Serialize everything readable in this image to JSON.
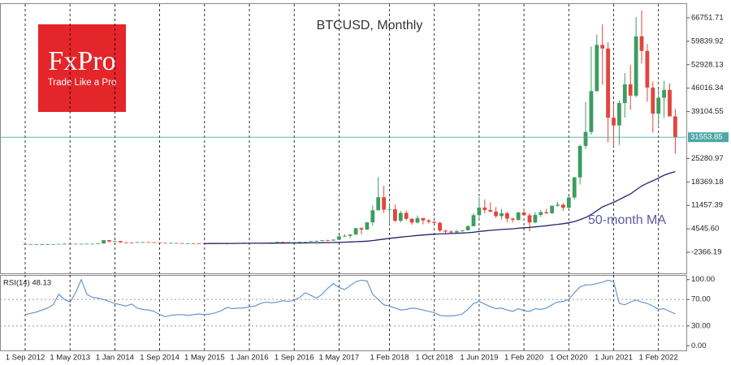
{
  "chart_data": [
    {
      "type": "candlestick",
      "title": "BTCUSD, Monthly",
      "logo": {
        "name": "FxPro",
        "slogan": "Trade Like a Pro"
      },
      "categories": [
        "1 Sep 2012",
        null,
        null,
        null,
        null,
        null,
        null,
        null,
        "1 May 2013",
        null,
        null,
        null,
        null,
        null,
        null,
        null,
        "1 Jan 2014",
        null,
        null,
        null,
        null,
        null,
        null,
        null,
        "1 Sep 2014",
        null,
        null,
        null,
        null,
        null,
        null,
        null,
        "1 May 2015",
        null,
        null,
        null,
        null,
        null,
        null,
        null,
        "1 Jan 2016",
        null,
        null,
        null,
        null,
        null,
        null,
        null,
        "1 Sep 2016",
        null,
        null,
        null,
        null,
        null,
        null,
        null,
        "1 May 2017",
        null,
        null,
        null,
        null,
        null,
        null,
        null,
        null,
        "1 Feb 2018",
        null,
        null,
        null,
        null,
        null,
        null,
        null,
        "1 Oct 2018",
        null,
        null,
        null,
        null,
        null,
        null,
        null,
        "1 Jun 2019",
        null,
        null,
        null,
        null,
        null,
        null,
        null,
        "1 Feb 2020",
        null,
        null,
        null,
        null,
        null,
        null,
        null,
        "1 Oct 2020",
        null,
        null,
        null,
        null,
        null,
        null,
        null,
        "1 Jun 2021",
        null,
        null,
        null,
        null,
        null,
        null,
        null,
        "1 Feb 2022",
        null,
        null,
        null
      ],
      "open": [
        10,
        12.4,
        11.2,
        12.6,
        13.5,
        20.4,
        33.4,
        93,
        139,
        129,
        97,
        106,
        141,
        141,
        211,
        1205,
        805,
        940,
        550,
        457,
        447,
        627,
        640,
        586,
        481,
        387,
        338,
        375,
        320,
        217,
        254,
        244,
        236,
        230,
        263,
        284,
        230,
        236,
        314,
        377,
        430,
        368,
        437,
        416,
        448,
        531,
        673,
        624,
        575,
        609,
        700,
        742,
        964,
        970,
        1190,
        1070,
        1350,
        2300,
        2480,
        2870,
        4740,
        4340,
        6450,
        10000,
        13860,
        10200,
        10300,
        6930,
        9240,
        7500,
        6400,
        7730,
        7030,
        6630,
        6310,
        4020,
        3740,
        3460,
        3850,
        4100,
        5320,
        8570,
        10820,
        10080,
        9630,
        8290,
        9150,
        7560,
        7190,
        9350,
        8540,
        6410,
        8630,
        9450,
        9140,
        11340,
        11650,
        10780,
        13780,
        19700,
        28990,
        33110,
        45160,
        58780,
        57720,
        37300,
        35040,
        41630,
        47150,
        43820,
        61300,
        57000,
        46200,
        38500,
        43200,
        45500,
        37700
      ],
      "high": [
        12.9,
        12.9,
        12.6,
        13.9,
        20.4,
        33.4,
        95,
        266,
        140,
        130,
        110,
        142,
        146,
        215,
        1242,
        1238,
        1000,
        1000,
        700,
        550,
        630,
        680,
        650,
        600,
        500,
        410,
        460,
        390,
        320,
        300,
        300,
        260,
        250,
        270,
        300,
        285,
        245,
        330,
        500,
        470,
        460,
        440,
        440,
        470,
        550,
        780,
        680,
        630,
        630,
        730,
        755,
        975,
        1160,
        1200,
        1350,
        1420,
        2760,
        2980,
        2920,
        4740,
        5000,
        6470,
        11500,
        19800,
        17200,
        11800,
        11700,
        9800,
        9990,
        7780,
        8500,
        7760,
        7400,
        6700,
        6550,
        4240,
        4110,
        4200,
        4130,
        5640,
        9080,
        13880,
        13180,
        12330,
        10930,
        10370,
        9510,
        7740,
        9580,
        10500,
        9190,
        9470,
        10070,
        10390,
        11440,
        12470,
        12050,
        14100,
        19860,
        29300,
        41950,
        58330,
        61780,
        64850,
        59600,
        41330,
        42400,
        50500,
        52900,
        67000,
        69000,
        59000,
        47990,
        45800,
        48200,
        47400,
        39900
      ],
      "low": [
        10,
        10.6,
        10.5,
        12.5,
        13.2,
        19.6,
        33,
        50,
        80,
        88,
        65,
        102,
        110,
        100,
        204,
        522,
        750,
        400,
        440,
        340,
        424,
        550,
        560,
        440,
        360,
        290,
        320,
        300,
        170,
        210,
        240,
        215,
        225,
        220,
        250,
        200,
        225,
        236,
        300,
        350,
        350,
        360,
        400,
        410,
        440,
        530,
        600,
        470,
        570,
        600,
        690,
        740,
        750,
        920,
        900,
        1060,
        1350,
        2100,
        1830,
        2700,
        2970,
        4160,
        5500,
        10000,
        9200,
        5900,
        6500,
        6500,
        7030,
        5760,
        6100,
        5880,
        6100,
        6200,
        3650,
        3120,
        3350,
        3390,
        3690,
        4100,
        5320,
        7560,
        9080,
        9400,
        7770,
        7300,
        6530,
        6430,
        6850,
        8450,
        3850,
        6150,
        8100,
        8920,
        8980,
        11090,
        9820,
        10420,
        13200,
        17600,
        28130,
        32300,
        45000,
        47000,
        30000,
        28800,
        29300,
        37330,
        39600,
        43300,
        53300,
        42000,
        32900,
        34300,
        37200,
        37700,
        26700
      ],
      "close": [
        12.4,
        11.2,
        12.6,
        13.5,
        20.4,
        33.4,
        93,
        139,
        129,
        97,
        106,
        141,
        141,
        211,
        1205,
        805,
        940,
        550,
        457,
        447,
        627,
        640,
        586,
        481,
        387,
        338,
        375,
        320,
        217,
        254,
        244,
        236,
        230,
        263,
        284,
        230,
        236,
        314,
        377,
        430,
        368,
        437,
        416,
        448,
        531,
        673,
        624,
        575,
        609,
        700,
        742,
        964,
        970,
        1190,
        1070,
        1350,
        2300,
        2480,
        2870,
        4740,
        4340,
        6450,
        10000,
        13860,
        10200,
        10300,
        6930,
        9240,
        7500,
        6400,
        7730,
        7030,
        6630,
        6310,
        4020,
        3740,
        3460,
        3850,
        4100,
        5320,
        8570,
        10820,
        10080,
        9630,
        8290,
        9150,
        7560,
        7190,
        9350,
        8540,
        6410,
        8630,
        9450,
        9140,
        11340,
        11650,
        10780,
        13780,
        19700,
        28990,
        33110,
        45160,
        58780,
        57720,
        37300,
        35040,
        41630,
        47150,
        43820,
        61300,
        57000,
        46200,
        38500,
        43200,
        45500,
        37700,
        31553.85
      ],
      "up_color": "#3e9c61",
      "down_color": "#e2453e",
      "ma": {
        "name": "50-month MA",
        "color": "#23236b",
        "values": [
          null,
          null,
          null,
          null,
          null,
          null,
          null,
          null,
          null,
          null,
          null,
          null,
          null,
          null,
          null,
          null,
          null,
          null,
          null,
          null,
          null,
          null,
          null,
          null,
          null,
          null,
          null,
          null,
          null,
          null,
          null,
          null,
          200,
          210,
          220,
          230,
          240,
          250,
          260,
          270,
          280,
          290,
          300,
          310,
          320,
          330,
          340,
          350,
          360,
          370,
          380,
          400,
          420,
          450,
          480,
          510,
          560,
          610,
          660,
          740,
          820,
          920,
          1080,
          1300,
          1520,
          1740,
          1900,
          2100,
          2280,
          2420,
          2580,
          2720,
          2850,
          2960,
          3040,
          3110,
          3170,
          3240,
          3310,
          3400,
          3550,
          3750,
          3930,
          4090,
          4220,
          4360,
          4460,
          4550,
          4720,
          4860,
          4960,
          5120,
          5290,
          5450,
          5660,
          5870,
          6060,
          6320,
          6690,
          7230,
          7870,
          8760,
          9880,
          11000,
          11700,
          12350,
          13150,
          14020,
          14830,
          16030,
          17150,
          18020,
          18700,
          19500,
          20350,
          20950,
          21400
        ]
      },
      "last_price": 31553.85,
      "last_price_color": "#4fa7a7",
      "ylim": [
        -8584,
        70818
      ],
      "yticks": [
        66751.71,
        59839.92,
        52928.13,
        46016.34,
        39104.55,
        25280.97,
        18369.18,
        11457.39,
        {
          "value": 4545.6,
          "label": "4545.60"
        },
        -2366.19
      ]
    },
    {
      "type": "line",
      "title": "RSI(14) 48.13",
      "color": "#5b8fc9",
      "values": [
        47,
        49,
        51,
        54,
        57,
        62,
        78,
        70,
        66,
        80,
        100,
        78,
        73,
        72,
        70,
        67,
        64,
        62,
        60,
        63,
        57,
        55,
        54,
        52,
        47,
        44,
        46,
        47,
        47,
        46,
        47,
        48,
        47,
        48,
        50,
        53,
        58,
        56,
        57,
        57,
        59,
        60,
        64,
        66,
        65,
        66,
        68,
        67,
        69,
        73,
        80,
        76,
        72,
        78,
        87,
        94,
        88,
        85,
        91,
        97,
        99,
        98,
        78,
        70,
        62,
        60,
        57,
        54,
        55,
        57,
        56,
        54,
        52,
        50,
        46,
        45,
        45,
        46,
        48,
        55,
        64,
        67,
        63,
        59,
        56,
        57,
        54,
        52,
        56,
        53,
        52,
        56,
        55,
        57,
        62,
        66,
        67,
        70,
        80,
        89,
        92,
        92,
        94,
        96,
        99,
        97,
        64,
        62,
        66,
        69,
        66,
        64,
        60,
        55,
        56,
        52,
        48.13
      ],
      "ylim": [
        -7,
        107
      ],
      "yticks": [
        {
          "value": 100,
          "label": "100.00"
        },
        {
          "value": 70,
          "label": "70.00"
        },
        {
          "value": 30,
          "label": "30.00"
        },
        {
          "value": 0,
          "label": "0.00"
        }
      ],
      "levels": [
        70,
        30
      ]
    }
  ]
}
